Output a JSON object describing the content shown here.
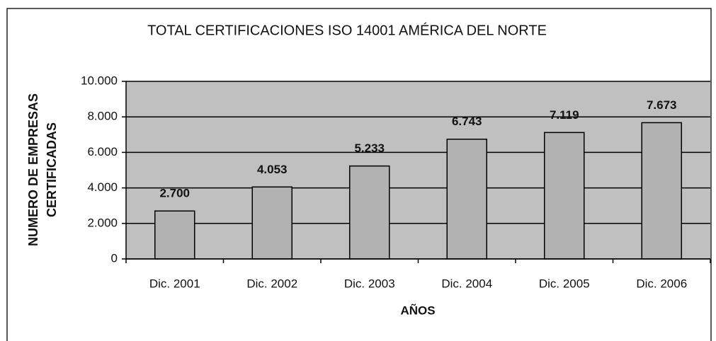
{
  "chart_data": {
    "type": "bar",
    "title": "TOTAL CERTIFICACIONES ISO 14001 AMÉRICA DEL NORTE",
    "ylabel": [
      "NUMERO DE EMPRESAS",
      "CERTIFICADAS"
    ],
    "xlabel": "AÑOS",
    "categories": [
      "Dic. 2001",
      "Dic. 2002",
      "Dic. 2003",
      "Dic. 2004",
      "Dic. 2005",
      "Dic. 2006"
    ],
    "values": [
      2700,
      4053,
      5233,
      6743,
      7119,
      7673
    ],
    "value_labels": [
      "2.700",
      "4.053",
      "5.233",
      "6.743",
      "7.119",
      "7.673"
    ],
    "color": "#b2b2b2",
    "ylim": [
      0,
      10000
    ],
    "yticks": [
      0,
      {
        "value": 2000,
        "label": "2.000"
      },
      {
        "value": 4000,
        "label": "4.000"
      },
      {
        "value": 6000,
        "label": "6.000"
      },
      {
        "value": 8000,
        "label": "8.000"
      },
      {
        "value": 10000,
        "label": "10.000"
      }
    ],
    "grid": true
  }
}
